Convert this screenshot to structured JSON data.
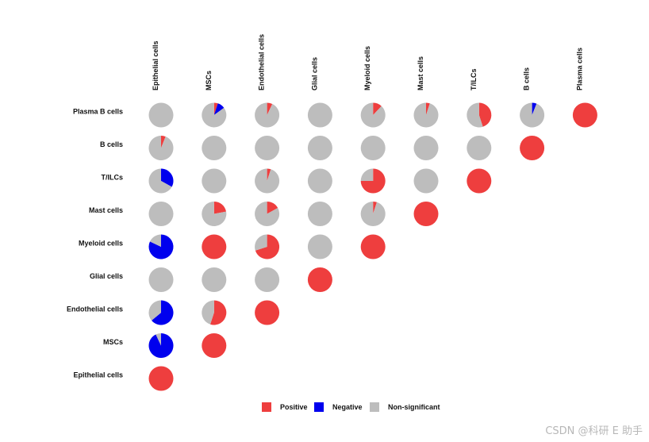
{
  "chart_data": {
    "type": "pie-matrix",
    "columns": [
      "Epithelial cells",
      "MSCs",
      "Endothelial cells",
      "Glial cells",
      "Myeloid cells",
      "Mast cells",
      "T/ILCs",
      "B cells",
      "Plasma cells"
    ],
    "rows": [
      "Plasma B cells",
      "B cells",
      "T/ILCs",
      "Mast cells",
      "Myeloid cells",
      "Glial cells",
      "Endothelial cells",
      "MSCs",
      "Epithelial cells"
    ],
    "categories": [
      "Positive",
      "Negative",
      "Non-significant"
    ],
    "colors": {
      "Positive": "#ee3e3e",
      "Negative": "#0000ee",
      "Non-significant": "#bdbdbd"
    },
    "cells": [
      [
        [
          0,
          0,
          1
        ],
        [
          0.05,
          0.1,
          0.85
        ],
        [
          0.07,
          0,
          0.93
        ],
        [
          0,
          0,
          1
        ],
        [
          0.12,
          0,
          0.88
        ],
        [
          0.05,
          0,
          0.95
        ],
        [
          0.45,
          0,
          0.55
        ],
        [
          0,
          0.06,
          0.94
        ],
        [
          1,
          0,
          0
        ]
      ],
      [
        [
          0.06,
          0,
          0.94
        ],
        [
          0,
          0,
          1
        ],
        [
          0,
          0,
          1
        ],
        [
          0,
          0,
          1
        ],
        [
          0,
          0,
          1
        ],
        [
          0,
          0,
          1
        ],
        [
          0,
          0,
          1
        ],
        [
          1,
          0,
          0
        ]
      ],
      [
        [
          0,
          0.33,
          0.67
        ],
        [
          0,
          0,
          1
        ],
        [
          0.05,
          0,
          0.95
        ],
        [
          0,
          0,
          1
        ],
        [
          0.75,
          0,
          0.25
        ],
        [
          0,
          0,
          1
        ],
        [
          1,
          0,
          0
        ]
      ],
      [
        [
          0,
          0,
          1
        ],
        [
          0.22,
          0,
          0.78
        ],
        [
          0.17,
          0,
          0.83
        ],
        [
          0,
          0,
          1
        ],
        [
          0.05,
          0,
          0.95
        ],
        [
          1,
          0,
          0
        ]
      ],
      [
        [
          0,
          0.82,
          0.18
        ],
        [
          1,
          0,
          0
        ],
        [
          0.7,
          0,
          0.3
        ],
        [
          0,
          0,
          1
        ],
        [
          1,
          0,
          0
        ]
      ],
      [
        [
          0,
          0,
          1
        ],
        [
          0,
          0,
          1
        ],
        [
          0,
          0,
          1
        ],
        [
          1,
          0,
          0
        ]
      ],
      [
        [
          0,
          0.64,
          0.36
        ],
        [
          0.55,
          0,
          0.45
        ],
        [
          1,
          0,
          0
        ]
      ],
      [
        [
          0,
          0.93,
          0.07
        ],
        [
          1,
          0,
          0
        ]
      ],
      [
        [
          1,
          0,
          0
        ]
      ]
    ],
    "legend": {
      "position": "bottom"
    }
  },
  "watermark": "CSDN @科研 E 助手"
}
